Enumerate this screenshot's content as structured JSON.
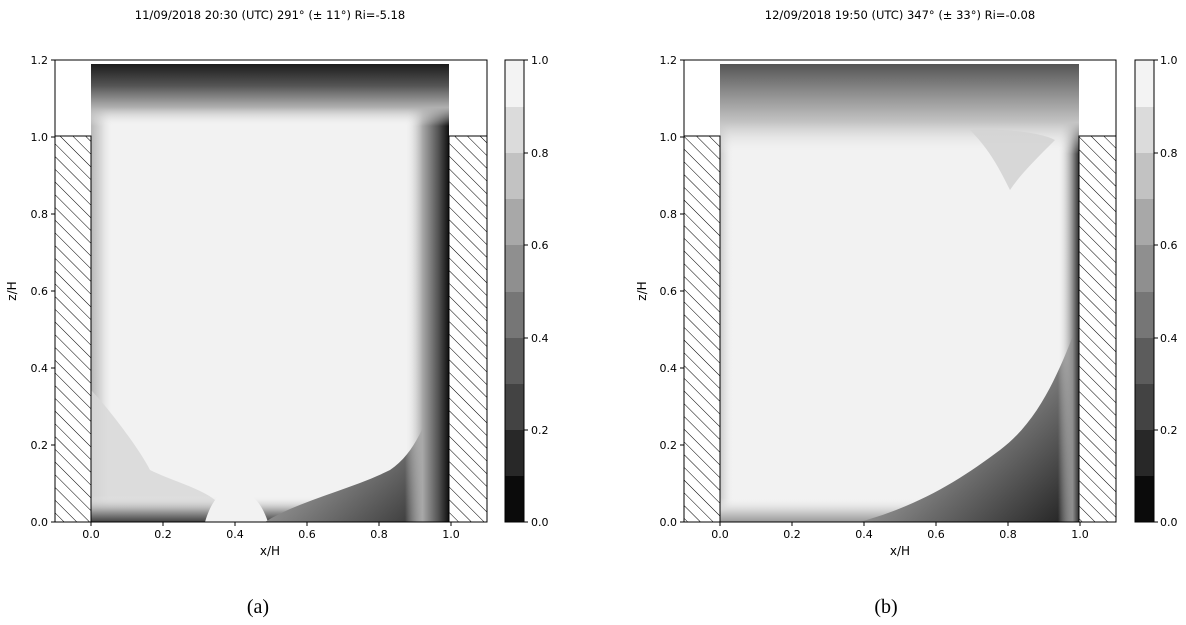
{
  "chart_data": [
    {
      "type": "heatmap",
      "panel_label": "(a)",
      "title": "11/09/2018 20:30 (UTC)  291° (± 11°) Ri=-5.18",
      "xlabel": "x/H",
      "ylabel": "z/H",
      "xlim": [
        -0.1,
        1.1
      ],
      "ylim": [
        0.0,
        1.2
      ],
      "x_ticks": [
        "0.0",
        "0.2",
        "0.4",
        "0.6",
        "0.8",
        "1.0"
      ],
      "y_ticks": [
        "0.0",
        "0.2",
        "0.4",
        "0.6",
        "0.8",
        "1.0",
        "1.2"
      ],
      "colorbar": {
        "range": [
          0.0,
          1.0
        ],
        "ticks": [
          "0.0",
          "0.2",
          "0.4",
          "0.6",
          "0.8",
          "1.0"
        ],
        "levels": 10,
        "colormap": "gray"
      },
      "buildings": [
        {
          "x": [
            -0.1,
            0.0
          ],
          "z": [
            0.0,
            1.0
          ]
        },
        {
          "x": [
            1.0,
            1.1
          ],
          "z": [
            0.0,
            1.0
          ]
        }
      ],
      "domain": {
        "x": [
          0.0,
          1.0
        ],
        "z": [
          0.0,
          1.18
        ]
      },
      "fields": {
        "interior": 0.95,
        "top_layer": [
          0.05,
          0.95
        ],
        "left_wall": 0.7,
        "right_wall": 0.1,
        "bottom": 0.5
      }
    },
    {
      "type": "heatmap",
      "panel_label": "(b)",
      "title": "12/09/2018 19:50 (UTC)  347° (± 33°) Ri=-0.08",
      "xlabel": "x/H",
      "ylabel": "z/H",
      "xlim": [
        -0.1,
        1.1
      ],
      "ylim": [
        0.0,
        1.2
      ],
      "x_ticks": [
        "0.0",
        "0.2",
        "0.4",
        "0.6",
        "0.8",
        "1.0"
      ],
      "y_ticks": [
        "0.0",
        "0.2",
        "0.4",
        "0.6",
        "0.8",
        "1.0",
        "1.2"
      ],
      "colorbar": {
        "range": [
          0.0,
          1.0
        ],
        "ticks": [
          "0.0",
          "0.2",
          "0.4",
          "0.6",
          "0.8",
          "1.0"
        ],
        "levels": 10,
        "colormap": "gray"
      },
      "buildings": [
        {
          "x": [
            -0.1,
            0.0
          ],
          "z": [
            0.0,
            1.0
          ]
        },
        {
          "x": [
            1.0,
            1.1
          ],
          "z": [
            0.0,
            1.0
          ]
        }
      ],
      "domain": {
        "x": [
          0.0,
          1.0
        ],
        "z": [
          0.0,
          1.18
        ]
      },
      "fields": {
        "interior": 0.95,
        "top_layer": [
          0.3,
          0.95
        ],
        "left_wall": 0.85,
        "right_wall": 0.2,
        "bottom": 0.75
      }
    }
  ],
  "captions": {
    "a": "(a)",
    "b": "(b)"
  }
}
